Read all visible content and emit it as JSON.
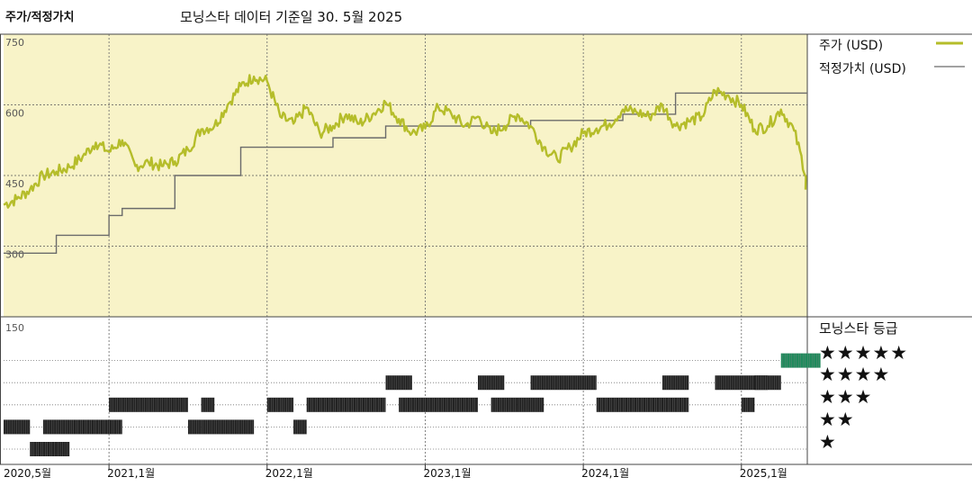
{
  "header": {
    "title": "주가/적정가치",
    "subtitle": "모닝스타 데이터 기준일 30. 5월 2025"
  },
  "legend": {
    "price_label": "주가 (USD)",
    "fair_label": "적정가치 (USD)",
    "price_color": "#b5bd2a",
    "fair_color": "#6b6b6b",
    "rating_title": "모닝스타 등급",
    "rating_color": "#1f8a5c"
  },
  "chart_data": {
    "type": "line",
    "x_range": [
      "2020-05",
      "2025-06"
    ],
    "ylim": [
      150,
      750
    ],
    "yticks": [
      150,
      300,
      450,
      600,
      750
    ],
    "xticks": [
      "2020,5월",
      "2021,1월",
      "2022,1월",
      "2023,1월",
      "2024,1월",
      "2025,1월"
    ],
    "series": [
      {
        "name": "주가 (USD)",
        "points": [
          [
            "2020-05",
            388
          ],
          [
            "2020-06",
            400
          ],
          [
            "2020-07",
            420
          ],
          [
            "2020-08",
            450
          ],
          [
            "2020-09",
            458
          ],
          [
            "2020-10",
            468
          ],
          [
            "2020-11",
            490
          ],
          [
            "2020-12",
            520
          ],
          [
            "2021-01",
            500
          ],
          [
            "2021-02",
            525
          ],
          [
            "2021-03",
            470
          ],
          [
            "2021-04",
            478
          ],
          [
            "2021-05",
            470
          ],
          [
            "2021-06",
            480
          ],
          [
            "2021-07",
            505
          ],
          [
            "2021-08",
            548
          ],
          [
            "2021-09",
            555
          ],
          [
            "2021-10",
            600
          ],
          [
            "2021-11",
            640
          ],
          [
            "2021-12",
            660
          ],
          [
            "2022-01",
            650
          ],
          [
            "2022-02",
            575
          ],
          [
            "2022-03",
            560
          ],
          [
            "2022-04",
            595
          ],
          [
            "2022-05",
            540
          ],
          [
            "2022-06",
            555
          ],
          [
            "2022-07",
            580
          ],
          [
            "2022-08",
            560
          ],
          [
            "2022-09",
            580
          ],
          [
            "2022-10",
            605
          ],
          [
            "2022-11",
            570
          ],
          [
            "2022-12",
            540
          ],
          [
            "2023-01",
            550
          ],
          [
            "2023-02",
            595
          ],
          [
            "2023-03",
            580
          ],
          [
            "2023-04",
            555
          ],
          [
            "2023-05",
            575
          ],
          [
            "2023-06",
            540
          ],
          [
            "2023-07",
            555
          ],
          [
            "2023-08",
            580
          ],
          [
            "2023-09",
            555
          ],
          [
            "2023-10",
            510
          ],
          [
            "2023-11",
            485
          ],
          [
            "2023-12",
            510
          ],
          [
            "2024-01",
            540
          ],
          [
            "2024-02",
            550
          ],
          [
            "2024-03",
            560
          ],
          [
            "2024-04",
            590
          ],
          [
            "2024-05",
            585
          ],
          [
            "2024-06",
            575
          ],
          [
            "2024-07",
            600
          ],
          [
            "2024-08",
            555
          ],
          [
            "2024-09",
            565
          ],
          [
            "2024-10",
            575
          ],
          [
            "2024-11",
            630
          ],
          [
            "2024-12",
            620
          ],
          [
            "2025-01",
            600
          ],
          [
            "2025-02",
            548
          ],
          [
            "2025-03",
            555
          ],
          [
            "2025-04",
            590
          ],
          [
            "2025-05",
            545
          ],
          [
            "2025-06",
            440
          ]
        ]
      },
      {
        "name": "적정가치 (USD)",
        "steps": [
          [
            "2020-05",
            285
          ],
          [
            "2020-09",
            323
          ],
          [
            "2021-01",
            365
          ],
          [
            "2021-02",
            380
          ],
          [
            "2021-06",
            450
          ],
          [
            "2021-11",
            510
          ],
          [
            "2022-06",
            530
          ],
          [
            "2022-10",
            555
          ],
          [
            "2023-09",
            567
          ],
          [
            "2024-04",
            580
          ],
          [
            "2024-08",
            625
          ]
        ],
        "end": "2025-06"
      }
    ],
    "rating_series": {
      "name": "모닝스타 등급",
      "segments": [
        [
          1,
          "2020-07",
          "2020-08"
        ],
        [
          1,
          "2020-09",
          "2020-09"
        ],
        [
          2,
          "2020-05",
          "2020-06"
        ],
        [
          2,
          "2020-08",
          "2020-09"
        ],
        [
          2,
          "2020-10",
          "2021-01"
        ],
        [
          2,
          "2021-07",
          "2021-07"
        ],
        [
          2,
          "2021-08",
          "2021-11"
        ],
        [
          2,
          "2022-03",
          "2022-03"
        ],
        [
          3,
          "2021-01",
          "2021-06"
        ],
        [
          3,
          "2021-08",
          "2021-08"
        ],
        [
          3,
          "2022-01",
          "2022-01"
        ],
        [
          3,
          "2022-02",
          "2022-02"
        ],
        [
          3,
          "2022-04",
          "2022-09"
        ],
        [
          3,
          "2022-11",
          "2023-04"
        ],
        [
          3,
          "2023-06",
          "2023-07"
        ],
        [
          3,
          "2023-08",
          "2023-09"
        ],
        [
          3,
          "2024-02",
          "2024-08"
        ],
        [
          3,
          "2025-01",
          "2025-01"
        ],
        [
          4,
          "2022-10",
          "2022-11"
        ],
        [
          4,
          "2023-05",
          "2023-06"
        ],
        [
          4,
          "2023-09",
          "2024-01"
        ],
        [
          4,
          "2024-07",
          "2024-08"
        ],
        [
          4,
          "2024-11",
          "2025-02"
        ],
        [
          4,
          "2025-02",
          "2025-03"
        ],
        [
          5,
          "2025-04",
          "2025-06"
        ]
      ]
    }
  },
  "ratings": {
    "five": "★★★★★",
    "four": "★★★★",
    "three": "★★★",
    "two": "★★",
    "one": "★"
  }
}
